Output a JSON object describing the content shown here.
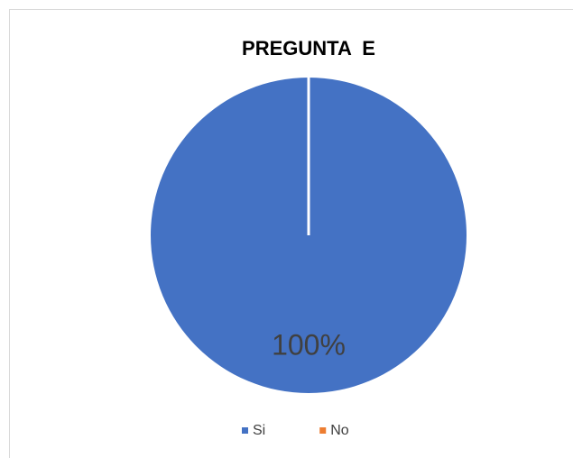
{
  "chart_data": {
    "type": "pie",
    "title": "PREGUNTA  E",
    "categories": [
      "Si",
      "No"
    ],
    "values": [
      100,
      0
    ],
    "value_labels": [
      "100%",
      null
    ],
    "colors": [
      "#4472c4",
      "#ed7d31"
    ],
    "legend": "bottom"
  }
}
